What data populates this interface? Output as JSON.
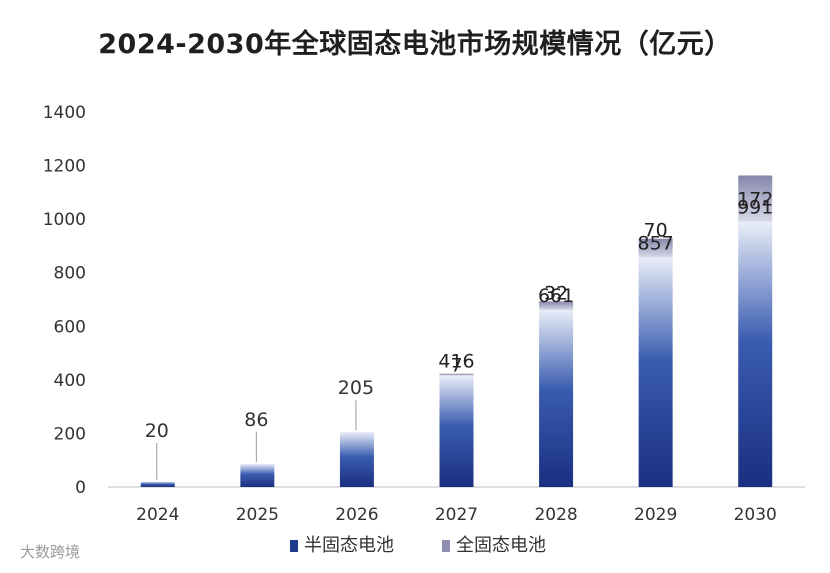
{
  "title": "2024-2030年全球固态电池市场规模情况（亿元）",
  "watermark": "大数跨境",
  "colors": {
    "semi": "#1e3a8f",
    "semi_light": "#dfe6f5",
    "all": "#8e8fb0",
    "all_light": "#d8d8e8"
  },
  "chart_data": {
    "type": "bar",
    "stacked": true,
    "categories": [
      "2024",
      "2025",
      "2026",
      "2027",
      "2028",
      "2029",
      "2030"
    ],
    "series": [
      {
        "name": "半固态电池",
        "values": [
          20,
          86,
          205,
          416,
          661,
          857,
          991
        ]
      },
      {
        "name": "全固态电池",
        "values": [
          null,
          null,
          null,
          7,
          32,
          70,
          172
        ]
      }
    ],
    "ylim": [
      0,
      1400
    ],
    "yticks": [
      0,
      200,
      400,
      600,
      800,
      1000,
      1200,
      1400
    ],
    "legend": "bottom",
    "grid": false
  }
}
